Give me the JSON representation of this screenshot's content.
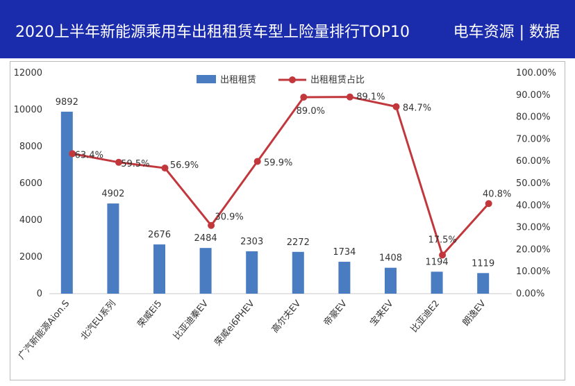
{
  "header": {
    "title": "2020上半年新能源乘用车出租租赁车型上险量排行TOP10",
    "source": "电车资源 | 数据"
  },
  "colors": {
    "header_bg": "#1a2bab",
    "bar": "#4a7cc1",
    "line": "#c1373c"
  },
  "chart_data": {
    "type": "bar+line",
    "categories": [
      "广汽新能源Aion.S",
      "北汽EU系列",
      "荣威Ei5",
      "比亚迪秦EV",
      "荣威ei6PHEV",
      "高尔夫EV",
      "帝豪EV",
      "宝来EV",
      "比亚迪E2",
      "朗逸EV"
    ],
    "series": [
      {
        "name": "出租租赁",
        "type": "bar",
        "axis": "left",
        "values": [
          9892,
          4902,
          2676,
          2484,
          2303,
          2272,
          1734,
          1408,
          1194,
          1119
        ],
        "labels": [
          "9892",
          "4902",
          "2676",
          "2484",
          "2303",
          "2272",
          "1734",
          "1408",
          "1194",
          "1119"
        ]
      },
      {
        "name": "出租租赁占比",
        "type": "line",
        "axis": "right",
        "values": [
          63.4,
          59.5,
          56.9,
          30.9,
          59.9,
          89.0,
          89.1,
          84.7,
          17.5,
          40.8
        ],
        "labels": [
          "63.4%",
          "59.5%",
          "56.9%",
          "30.9%",
          "59.9%",
          "89.0%",
          "89.1%",
          "84.7%",
          "17.5%",
          "40.8%"
        ]
      }
    ],
    "y_left": {
      "ylim": [
        0,
        12000
      ],
      "ticks": [
        "0",
        "2000",
        "4000",
        "6000",
        "8000",
        "10000",
        "12000"
      ]
    },
    "y_right": {
      "ylim": [
        0,
        100
      ],
      "ticks": [
        "0.00%",
        "10.00%",
        "20.00%",
        "30.00%",
        "40.00%",
        "50.00%",
        "60.00%",
        "70.00%",
        "80.00%",
        "90.00%",
        "100.00%"
      ]
    },
    "legend_position": "top-center",
    "grid": false
  }
}
